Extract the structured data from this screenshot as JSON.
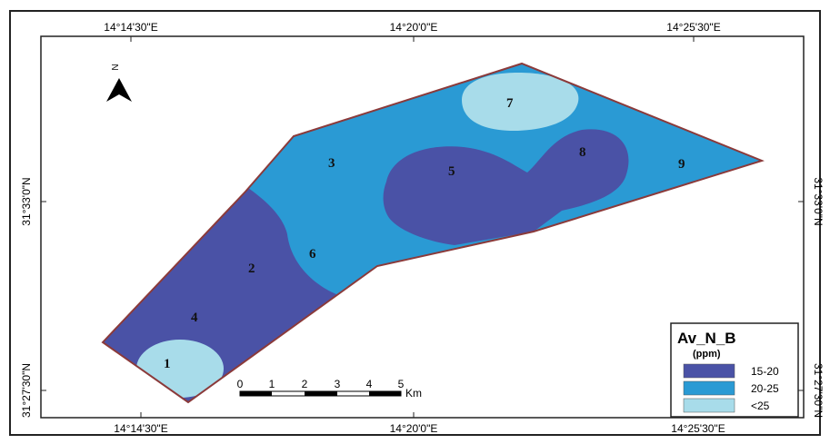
{
  "map": {
    "top_lon_labels": [
      "14°14'30\"E",
      "14°20'0\"E",
      "14°25'30\"E"
    ],
    "bottom_lon_labels": [
      "14°14'30\"E",
      "14°20'0\"E",
      "14°25'30\"E"
    ],
    "left_lat_labels": [
      "31°33'0\"N",
      "31°27'30\"N"
    ],
    "right_lat_labels": [
      "31°33'0\"N",
      "31°27'30\"N"
    ],
    "north_label": "N",
    "sites": [
      "1",
      "2",
      "3",
      "4",
      "5",
      "6",
      "7",
      "8",
      "9"
    ],
    "scale": {
      "ticks": [
        "0",
        "1",
        "2",
        "3",
        "4",
        "5"
      ],
      "unit": "Km"
    },
    "colors": {
      "outline": "#8b3a3a",
      "frame": "#222222"
    }
  },
  "legend": {
    "title": "Av_N_B",
    "subtitle": "(ppm)",
    "items": [
      {
        "label": "15-20",
        "color": "#4a52a6"
      },
      {
        "label": "20-25",
        "color": "#2a9ad4"
      },
      {
        "label": "<25",
        "color": "#a8dcea"
      }
    ]
  }
}
